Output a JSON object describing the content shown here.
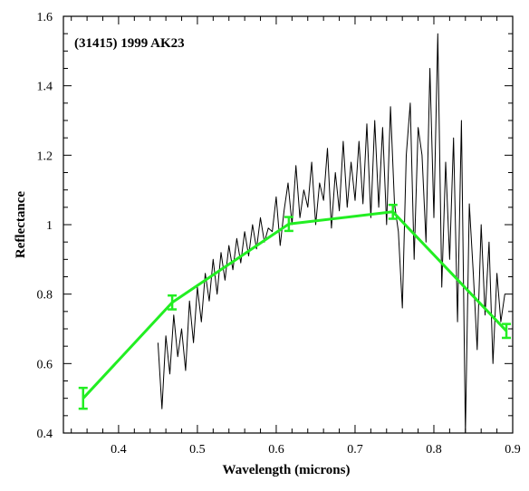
{
  "chart_data": {
    "type": "line",
    "title": "(31415) 1999 AK23",
    "xlabel": "Wavelength (microns)",
    "ylabel": "Reflectance",
    "xlim": [
      0.33,
      0.9
    ],
    "ylim": [
      0.4,
      1.6
    ],
    "xticks": [
      0.4,
      0.5,
      0.6,
      0.7,
      0.8,
      0.9
    ],
    "yticks": [
      0.4,
      0.6,
      0.8,
      1,
      1.2,
      1.4,
      1.6
    ],
    "xtick_labels": [
      "0.4",
      "0.5",
      "0.6",
      "0.7",
      "0.8",
      "0.9"
    ],
    "ytick_labels": [
      "0.4",
      "0.6",
      "0.8",
      "1",
      "1.2",
      "1.4",
      "1.6"
    ],
    "grid": false,
    "series": [
      {
        "kind": "spectrum",
        "color": "#000000",
        "x": [
          0.45,
          0.455,
          0.46,
          0.465,
          0.47,
          0.475,
          0.48,
          0.485,
          0.49,
          0.495,
          0.5,
          0.505,
          0.51,
          0.515,
          0.52,
          0.525,
          0.53,
          0.535,
          0.54,
          0.545,
          0.55,
          0.555,
          0.56,
          0.565,
          0.57,
          0.575,
          0.58,
          0.585,
          0.59,
          0.595,
          0.6,
          0.605,
          0.61,
          0.615,
          0.62,
          0.625,
          0.63,
          0.635,
          0.64,
          0.645,
          0.65,
          0.655,
          0.66,
          0.665,
          0.67,
          0.675,
          0.68,
          0.685,
          0.69,
          0.695,
          0.7,
          0.705,
          0.71,
          0.715,
          0.72,
          0.725,
          0.73,
          0.735,
          0.74,
          0.745,
          0.75,
          0.755,
          0.76,
          0.765,
          0.77,
          0.775,
          0.78,
          0.785,
          0.79,
          0.795,
          0.8,
          0.805,
          0.81,
          0.815,
          0.82,
          0.825,
          0.83,
          0.835,
          0.84,
          0.845,
          0.85,
          0.855,
          0.86,
          0.865,
          0.87,
          0.875,
          0.88,
          0.885,
          0.89
        ],
        "y": [
          0.66,
          0.47,
          0.68,
          0.57,
          0.74,
          0.62,
          0.7,
          0.58,
          0.78,
          0.66,
          0.82,
          0.72,
          0.86,
          0.78,
          0.9,
          0.8,
          0.92,
          0.84,
          0.94,
          0.87,
          0.96,
          0.89,
          0.98,
          0.91,
          1.0,
          0.93,
          1.02,
          0.95,
          0.99,
          0.98,
          1.08,
          0.94,
          1.04,
          1.12,
          1.0,
          1.17,
          1.02,
          1.1,
          1.05,
          1.18,
          1.0,
          1.12,
          1.07,
          1.22,
          0.99,
          1.15,
          1.04,
          1.24,
          1.05,
          1.18,
          1.07,
          1.24,
          1.06,
          1.29,
          1.02,
          1.3,
          1.05,
          1.28,
          1.0,
          1.34,
          1.06,
          0.98,
          0.76,
          1.2,
          1.35,
          0.9,
          1.28,
          1.2,
          0.95,
          1.45,
          1.02,
          1.55,
          0.82,
          1.18,
          0.9,
          1.25,
          0.72,
          1.3,
          0.4,
          1.06,
          0.86,
          0.64,
          1.0,
          0.74,
          0.95,
          0.6,
          0.86,
          0.72,
          0.8
        ]
      },
      {
        "kind": "photometry",
        "color": "#22ee22",
        "x": [
          0.355,
          0.468,
          0.616,
          0.748,
          0.892
        ],
        "y": [
          0.5,
          0.776,
          1.002,
          1.037,
          0.694
        ],
        "err": [
          0.03,
          0.02,
          0.02,
          0.02,
          0.02
        ]
      }
    ]
  }
}
